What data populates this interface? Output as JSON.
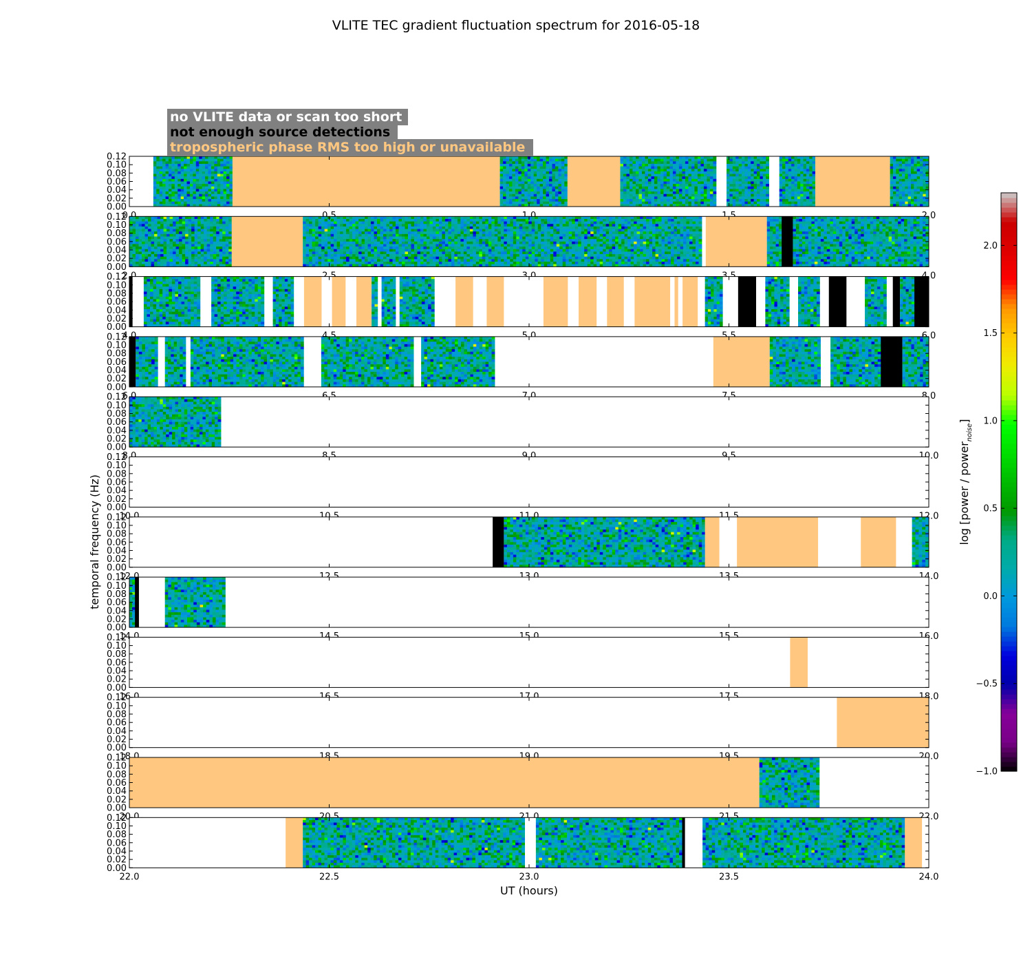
{
  "chart_data": {
    "type": "heatmap",
    "title": "VLITE TEC gradient fluctuation spectrum for 2016-05-18",
    "xlabel": "UT (hours)",
    "ylabel": "temporal frequency (Hz)",
    "ylim": [
      0,
      0.12
    ],
    "ytick_labels": [
      "0.00",
      "0.02",
      "0.04",
      "0.06",
      "0.08",
      "0.10",
      "0.12"
    ],
    "colormap": "nipy_spectral",
    "colorbar": {
      "label": "log [power / power",
      "label_subscript": "noise",
      "label_close": "]",
      "range": [
        -1.0,
        2.3
      ],
      "tick_labels": [
        "−1.0",
        "−0.5",
        "0.0",
        "0.5",
        "1.0",
        "1.5",
        "2.0"
      ],
      "tick_values": [
        -1.0,
        -0.5,
        0.0,
        0.5,
        1.0,
        1.5,
        2.0
      ]
    },
    "legend": {
      "placement": "top-left",
      "background": "#808080",
      "entries": [
        {
          "text": "no VLITE data or scan too short",
          "category": "nodata",
          "color": "#ffffff"
        },
        {
          "text": "not enough source detections",
          "category": "nodet",
          "color": "#000000"
        },
        {
          "text": "tropospheric phase RMS too high or unavailable",
          "category": "tropo",
          "color": "#ffc780"
        }
      ]
    },
    "panels": [
      {
        "x_range": [
          0,
          2
        ],
        "xtick_labels": [
          "0.0",
          "0.5",
          "1.0",
          "1.5",
          "2.0"
        ],
        "segments": [
          {
            "start": 0.06,
            "end": 0.258,
            "kind": "data"
          },
          {
            "start": 0.258,
            "end": 0.927,
            "kind": "tropo"
          },
          {
            "start": 0.927,
            "end": 1.096,
            "kind": "data"
          },
          {
            "start": 1.096,
            "end": 1.228,
            "kind": "tropo"
          },
          {
            "start": 1.228,
            "end": 1.468,
            "kind": "data"
          },
          {
            "start": 1.494,
            "end": 1.6,
            "kind": "data"
          },
          {
            "start": 1.626,
            "end": 1.716,
            "kind": "data"
          },
          {
            "start": 1.716,
            "end": 1.903,
            "kind": "tropo"
          },
          {
            "start": 1.903,
            "end": 2.0,
            "kind": "data"
          }
        ]
      },
      {
        "x_range": [
          2,
          4
        ],
        "xtick_labels": [
          "2.0",
          "2.5",
          "3.0",
          "3.5",
          "4.0"
        ],
        "segments": [
          {
            "start": 2.0,
            "end": 2.256,
            "kind": "data"
          },
          {
            "start": 2.256,
            "end": 2.434,
            "kind": "tropo"
          },
          {
            "start": 2.434,
            "end": 3.432,
            "kind": "data"
          },
          {
            "start": 3.442,
            "end": 3.595,
            "kind": "tropo"
          },
          {
            "start": 3.595,
            "end": 3.632,
            "kind": "data"
          },
          {
            "start": 3.632,
            "end": 3.66,
            "kind": "nodet"
          },
          {
            "start": 3.66,
            "end": 4.0,
            "kind": "data"
          }
        ]
      },
      {
        "x_range": [
          4,
          6
        ],
        "xtick_labels": [
          "4.0",
          "4.5",
          "5.0",
          "5.5",
          "6.0"
        ],
        "segments": [
          {
            "start": 4.0,
            "end": 4.008,
            "kind": "nodet"
          },
          {
            "start": 4.036,
            "end": 4.177,
            "kind": "data"
          },
          {
            "start": 4.205,
            "end": 4.337,
            "kind": "data"
          },
          {
            "start": 4.359,
            "end": 4.411,
            "kind": "data"
          },
          {
            "start": 4.437,
            "end": 4.481,
            "kind": "tropo"
          },
          {
            "start": 4.507,
            "end": 4.541,
            "kind": "tropo"
          },
          {
            "start": 4.568,
            "end": 4.606,
            "kind": "tropo"
          },
          {
            "start": 4.606,
            "end": 4.621,
            "kind": "data"
          },
          {
            "start": 4.631,
            "end": 4.666,
            "kind": "data"
          },
          {
            "start": 4.676,
            "end": 4.763,
            "kind": "data"
          },
          {
            "start": 4.816,
            "end": 4.86,
            "kind": "tropo"
          },
          {
            "start": 4.894,
            "end": 4.937,
            "kind": "tropo"
          },
          {
            "start": 5.036,
            "end": 5.097,
            "kind": "tropo"
          },
          {
            "start": 5.124,
            "end": 5.169,
            "kind": "tropo"
          },
          {
            "start": 5.195,
            "end": 5.237,
            "kind": "tropo"
          },
          {
            "start": 5.264,
            "end": 5.353,
            "kind": "tropo"
          },
          {
            "start": 5.364,
            "end": 5.373,
            "kind": "tropo"
          },
          {
            "start": 5.384,
            "end": 5.422,
            "kind": "tropo"
          },
          {
            "start": 5.44,
            "end": 5.484,
            "kind": "data"
          },
          {
            "start": 5.523,
            "end": 5.568,
            "kind": "nodet"
          },
          {
            "start": 5.591,
            "end": 5.651,
            "kind": "data"
          },
          {
            "start": 5.673,
            "end": 5.727,
            "kind": "data"
          },
          {
            "start": 5.75,
            "end": 5.794,
            "kind": "nodet"
          },
          {
            "start": 5.84,
            "end": 5.894,
            "kind": "data"
          },
          {
            "start": 5.91,
            "end": 5.928,
            "kind": "nodet"
          },
          {
            "start": 5.928,
            "end": 5.964,
            "kind": "data"
          },
          {
            "start": 5.964,
            "end": 6.0,
            "kind": "nodet"
          }
        ]
      },
      {
        "x_range": [
          6,
          8
        ],
        "xtick_labels": [
          "6.0",
          "6.5",
          "7.0",
          "7.5",
          "8.0"
        ],
        "segments": [
          {
            "start": 6.0,
            "end": 6.016,
            "kind": "nodet"
          },
          {
            "start": 6.016,
            "end": 6.071,
            "kind": "data"
          },
          {
            "start": 6.089,
            "end": 6.141,
            "kind": "data"
          },
          {
            "start": 6.153,
            "end": 6.436,
            "kind": "data"
          },
          {
            "start": 6.48,
            "end": 6.711,
            "kind": "data"
          },
          {
            "start": 6.73,
            "end": 6.914,
            "kind": "data"
          },
          {
            "start": 7.461,
            "end": 7.602,
            "kind": "tropo"
          },
          {
            "start": 7.602,
            "end": 7.729,
            "kind": "data"
          },
          {
            "start": 7.754,
            "end": 7.88,
            "kind": "data"
          },
          {
            "start": 7.88,
            "end": 7.934,
            "kind": "nodet"
          },
          {
            "start": 7.934,
            "end": 8.0,
            "kind": "data"
          }
        ]
      },
      {
        "x_range": [
          8,
          10
        ],
        "xtick_labels": [
          "8.0",
          "8.5",
          "9.0",
          "9.5",
          "10.0"
        ],
        "segments": [
          {
            "start": 8.0,
            "end": 8.229,
            "kind": "data"
          }
        ]
      },
      {
        "x_range": [
          10,
          12
        ],
        "xtick_labels": [
          "10.0",
          "10.5",
          "11.0",
          "11.5",
          "12.0"
        ],
        "segments": []
      },
      {
        "x_range": [
          12,
          14
        ],
        "xtick_labels": [
          "12.0",
          "12.5",
          "13.0",
          "13.5",
          "14.0"
        ],
        "segments": [
          {
            "start": 12.909,
            "end": 12.937,
            "kind": "nodet"
          },
          {
            "start": 12.937,
            "end": 13.44,
            "kind": "data"
          },
          {
            "start": 13.44,
            "end": 13.476,
            "kind": "tropo"
          },
          {
            "start": 13.52,
            "end": 13.723,
            "kind": "tropo"
          },
          {
            "start": 13.83,
            "end": 13.918,
            "kind": "tropo"
          },
          {
            "start": 13.958,
            "end": 14.0,
            "kind": "data"
          }
        ]
      },
      {
        "x_range": [
          14,
          16
        ],
        "xtick_labels": [
          "14.0",
          "14.5",
          "15.0",
          "15.5",
          "16.0"
        ],
        "segments": [
          {
            "start": 14.0,
            "end": 14.014,
            "kind": "data"
          },
          {
            "start": 14.014,
            "end": 14.024,
            "kind": "nodet"
          },
          {
            "start": 14.089,
            "end": 14.24,
            "kind": "data"
          }
        ]
      },
      {
        "x_range": [
          16,
          18
        ],
        "xtick_labels": [
          "16.0",
          "16.5",
          "17.0",
          "17.5",
          "18.0"
        ],
        "segments": [
          {
            "start": 17.653,
            "end": 17.697,
            "kind": "tropo"
          }
        ]
      },
      {
        "x_range": [
          18,
          20
        ],
        "xtick_labels": [
          "18.0",
          "18.5",
          "19.0",
          "19.5",
          "20.0"
        ],
        "segments": [
          {
            "start": 19.77,
            "end": 20.0,
            "kind": "tropo"
          }
        ]
      },
      {
        "x_range": [
          20,
          22
        ],
        "xtick_labels": [
          "20.0",
          "20.5",
          "21.0",
          "21.5",
          "22.0"
        ],
        "segments": [
          {
            "start": 20.0,
            "end": 21.576,
            "kind": "tropo"
          },
          {
            "start": 21.576,
            "end": 21.726,
            "kind": "data"
          }
        ]
      },
      {
        "x_range": [
          22,
          24
        ],
        "xtick_labels": [
          "22.0",
          "22.5",
          "23.0",
          "23.5",
          "24.0"
        ],
        "segments": [
          {
            "start": 22.391,
            "end": 22.434,
            "kind": "tropo"
          },
          {
            "start": 22.434,
            "end": 22.989,
            "kind": "data"
          },
          {
            "start": 23.017,
            "end": 23.383,
            "kind": "data"
          },
          {
            "start": 23.383,
            "end": 23.39,
            "kind": "nodet"
          },
          {
            "start": 23.434,
            "end": 23.94,
            "kind": "data"
          },
          {
            "start": 23.94,
            "end": 23.983,
            "kind": "tropo"
          }
        ]
      }
    ]
  }
}
